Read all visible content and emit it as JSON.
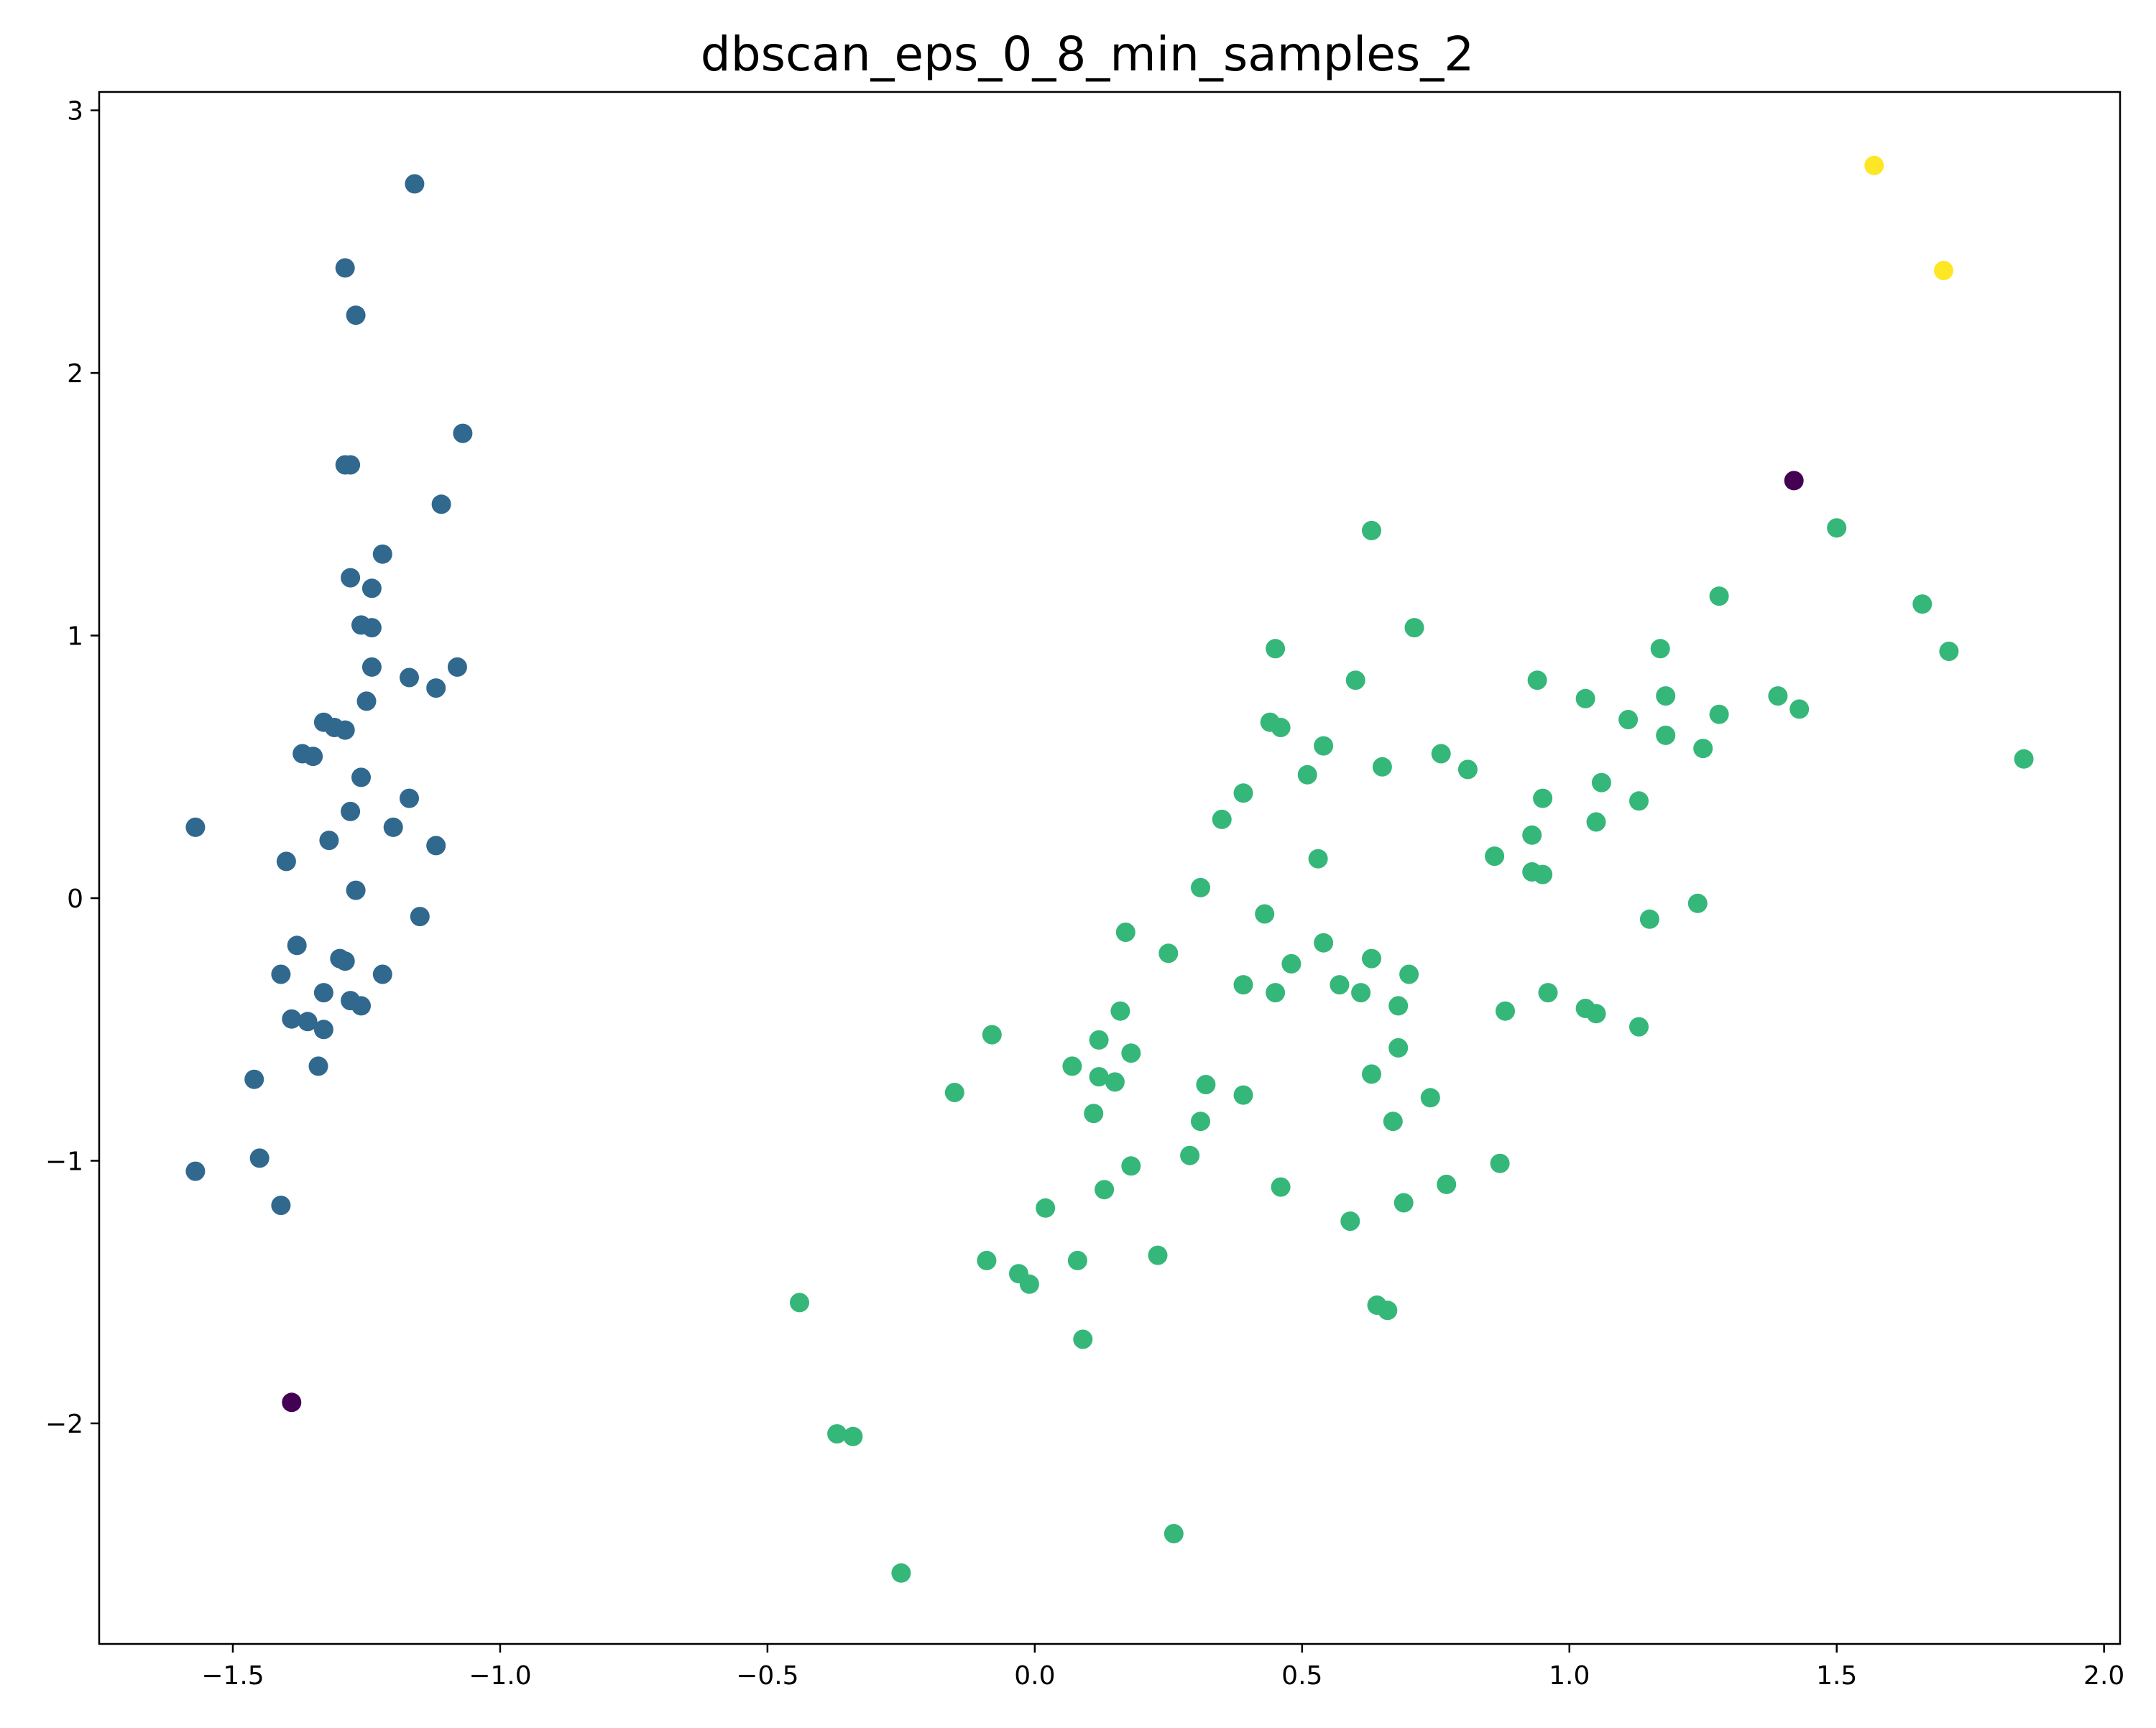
{
  "chart_data": {
    "type": "scatter",
    "title": "dbscan_eps_0_8_min_samples_2",
    "xlabel": "",
    "ylabel": "",
    "xlim": [
      -1.75,
      2.03
    ],
    "ylim": [
      -2.84,
      3.07
    ],
    "x_ticks": [
      -1.5,
      -1.0,
      -0.5,
      0.0,
      0.5,
      1.0,
      1.5,
      2.0
    ],
    "x_tick_labels": [
      "−1.5",
      "−1.0",
      "−0.5",
      "0.0",
      "0.5",
      "1.0",
      "1.5",
      "2.0"
    ],
    "y_ticks": [
      -2,
      -1,
      0,
      1,
      2,
      3
    ],
    "y_tick_labels": [
      "−2",
      "−1",
      "0",
      "1",
      "2",
      "3"
    ],
    "grid": false,
    "legend": "none",
    "cluster_colors": {
      "-1": "#440154",
      "0": "#31688e",
      "1": "#35b779",
      "2": "#fde725"
    },
    "series": [
      {
        "cluster": -1,
        "color": "#440154",
        "points": [
          [
            -1.39,
            -1.92
          ],
          [
            1.42,
            1.59
          ]
        ]
      },
      {
        "cluster": 0,
        "color": "#31688e",
        "points": [
          [
            -1.16,
            2.72
          ],
          [
            -1.29,
            2.4
          ],
          [
            -1.27,
            2.22
          ],
          [
            -1.07,
            1.77
          ],
          [
            -1.29,
            1.65
          ],
          [
            -1.28,
            1.65
          ],
          [
            -1.11,
            1.5
          ],
          [
            -1.22,
            1.31
          ],
          [
            -1.28,
            1.22
          ],
          [
            -1.24,
            1.18
          ],
          [
            -1.26,
            1.04
          ],
          [
            -1.24,
            1.03
          ],
          [
            -1.24,
            0.88
          ],
          [
            -1.08,
            0.88
          ],
          [
            -1.17,
            0.84
          ],
          [
            -1.12,
            0.8
          ],
          [
            -1.25,
            0.75
          ],
          [
            -1.33,
            0.67
          ],
          [
            -1.31,
            0.65
          ],
          [
            -1.29,
            0.64
          ],
          [
            -1.37,
            0.55
          ],
          [
            -1.35,
            0.54
          ],
          [
            -1.26,
            0.46
          ],
          [
            -1.17,
            0.38
          ],
          [
            -1.28,
            0.33
          ],
          [
            -1.57,
            0.27
          ],
          [
            -1.2,
            0.27
          ],
          [
            -1.32,
            0.22
          ],
          [
            -1.12,
            0.2
          ],
          [
            -1.4,
            0.14
          ],
          [
            -1.27,
            0.03
          ],
          [
            -1.15,
            -0.07
          ],
          [
            -1.38,
            -0.18
          ],
          [
            -1.3,
            -0.23
          ],
          [
            -1.29,
            -0.24
          ],
          [
            -1.41,
            -0.29
          ],
          [
            -1.22,
            -0.29
          ],
          [
            -1.33,
            -0.36
          ],
          [
            -1.28,
            -0.39
          ],
          [
            -1.26,
            -0.41
          ],
          [
            -1.39,
            -0.46
          ],
          [
            -1.36,
            -0.47
          ],
          [
            -1.33,
            -0.5
          ],
          [
            -1.34,
            -0.64
          ],
          [
            -1.46,
            -0.69
          ],
          [
            -1.45,
            -0.99
          ],
          [
            -1.57,
            -1.04
          ],
          [
            -1.41,
            -1.17
          ]
        ]
      },
      {
        "cluster": 1,
        "color": "#35b779",
        "points": [
          [
            0.63,
            1.4
          ],
          [
            1.5,
            1.41
          ],
          [
            1.28,
            1.15
          ],
          [
            1.66,
            1.12
          ],
          [
            0.71,
            1.03
          ],
          [
            0.45,
            0.95
          ],
          [
            1.17,
            0.95
          ],
          [
            1.71,
            0.94
          ],
          [
            0.6,
            0.83
          ],
          [
            0.94,
            0.83
          ],
          [
            1.18,
            0.77
          ],
          [
            1.39,
            0.77
          ],
          [
            1.03,
            0.76
          ],
          [
            1.43,
            0.72
          ],
          [
            1.28,
            0.7
          ],
          [
            1.11,
            0.68
          ],
          [
            0.44,
            0.67
          ],
          [
            0.46,
            0.65
          ],
          [
            1.18,
            0.62
          ],
          [
            0.54,
            0.58
          ],
          [
            1.25,
            0.57
          ],
          [
            0.76,
            0.55
          ],
          [
            1.85,
            0.53
          ],
          [
            0.65,
            0.5
          ],
          [
            0.81,
            0.49
          ],
          [
            0.51,
            0.47
          ],
          [
            1.06,
            0.44
          ],
          [
            0.39,
            0.4
          ],
          [
            0.95,
            0.38
          ],
          [
            1.13,
            0.37
          ],
          [
            0.35,
            0.3
          ],
          [
            1.05,
            0.29
          ],
          [
            0.93,
            0.24
          ],
          [
            0.86,
            0.16
          ],
          [
            0.53,
            0.15
          ],
          [
            0.93,
            0.1
          ],
          [
            0.95,
            0.09
          ],
          [
            0.31,
            0.04
          ],
          [
            1.24,
            -0.02
          ],
          [
            0.43,
            -0.06
          ],
          [
            1.15,
            -0.08
          ],
          [
            0.17,
            -0.13
          ],
          [
            0.54,
            -0.17
          ],
          [
            0.25,
            -0.21
          ],
          [
            0.63,
            -0.23
          ],
          [
            0.48,
            -0.25
          ],
          [
            0.7,
            -0.29
          ],
          [
            0.39,
            -0.33
          ],
          [
            0.57,
            -0.33
          ],
          [
            0.45,
            -0.36
          ],
          [
            0.61,
            -0.36
          ],
          [
            0.96,
            -0.36
          ],
          [
            0.68,
            -0.41
          ],
          [
            1.03,
            -0.42
          ],
          [
            0.16,
            -0.43
          ],
          [
            0.88,
            -0.43
          ],
          [
            1.05,
            -0.44
          ],
          [
            1.13,
            -0.49
          ],
          [
            -0.08,
            -0.52
          ],
          [
            0.12,
            -0.54
          ],
          [
            0.68,
            -0.57
          ],
          [
            0.18,
            -0.59
          ],
          [
            0.07,
            -0.64
          ],
          [
            0.63,
            -0.67
          ],
          [
            0.12,
            -0.68
          ],
          [
            0.15,
            -0.7
          ],
          [
            0.32,
            -0.71
          ],
          [
            -0.15,
            -0.74
          ],
          [
            0.39,
            -0.75
          ],
          [
            0.74,
            -0.76
          ],
          [
            0.11,
            -0.82
          ],
          [
            0.31,
            -0.85
          ],
          [
            0.67,
            -0.85
          ],
          [
            0.29,
            -0.98
          ],
          [
            0.87,
            -1.01
          ],
          [
            0.18,
            -1.02
          ],
          [
            0.77,
            -1.09
          ],
          [
            0.46,
            -1.1
          ],
          [
            0.13,
            -1.11
          ],
          [
            0.69,
            -1.16
          ],
          [
            0.02,
            -1.18
          ],
          [
            0.59,
            -1.23
          ],
          [
            0.23,
            -1.36
          ],
          [
            -0.09,
            -1.38
          ],
          [
            0.08,
            -1.38
          ],
          [
            -0.03,
            -1.43
          ],
          [
            -0.01,
            -1.47
          ],
          [
            -0.44,
            -1.54
          ],
          [
            0.64,
            -1.55
          ],
          [
            0.66,
            -1.57
          ],
          [
            0.09,
            -1.68
          ],
          [
            -0.37,
            -2.04
          ],
          [
            -0.34,
            -2.05
          ],
          [
            0.26,
            -2.42
          ],
          [
            -0.25,
            -2.57
          ]
        ]
      },
      {
        "cluster": 2,
        "color": "#fde725",
        "points": [
          [
            1.57,
            2.79
          ],
          [
            1.7,
            2.39
          ]
        ]
      }
    ]
  }
}
